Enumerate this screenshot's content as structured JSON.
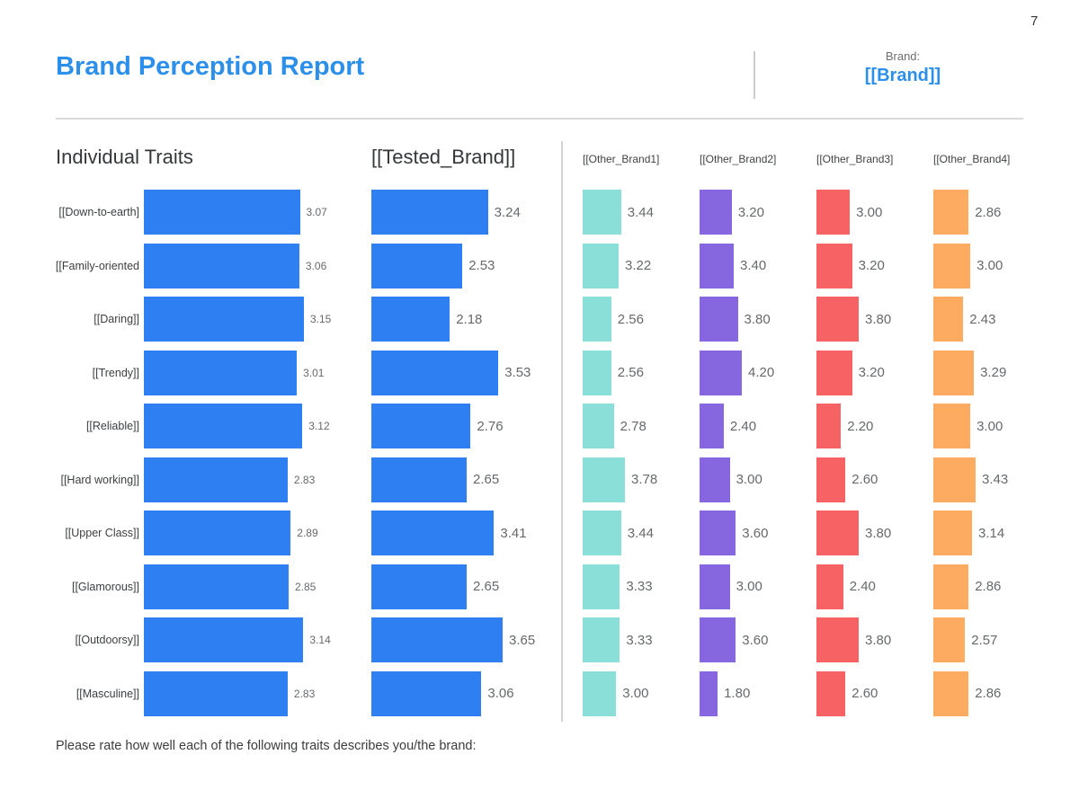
{
  "page": {
    "number": "7"
  },
  "header": {
    "title": "Brand Perception Report",
    "brand_label": "Brand:",
    "brand_value": "[[Brand]]",
    "accent_color": "#2C8FEA"
  },
  "footer": {
    "caption": "Please rate how well each of the following traits describes you/the brand:"
  },
  "chart_data": {
    "type": "bar",
    "orientation": "horizontal",
    "grid": false,
    "legend_position": "none",
    "value_label_decimals": 2,
    "categories": [
      "[[Down-to-earth]",
      "[[Family-oriented",
      "[[Daring]]",
      "[[Trendy]]",
      "[[Reliable]]",
      "[[Hard working]]",
      "[[Upper Class]]",
      "[[Glamorous]]",
      "[[Outdoorsy]]",
      "[[Masculine]]"
    ],
    "series": [
      {
        "name": "Individual Traits",
        "color": "#2E7FF2",
        "axis_max": 3.15,
        "values": [
          3.07,
          3.06,
          3.15,
          3.01,
          3.12,
          2.83,
          2.89,
          2.85,
          3.14,
          2.83
        ]
      },
      {
        "name": "[[Tested_Brand]]",
        "color": "#2E7FF2",
        "axis_max": 3.65,
        "values": [
          3.24,
          2.53,
          2.18,
          3.53,
          2.76,
          2.65,
          3.41,
          2.65,
          3.65,
          3.06
        ]
      },
      {
        "name": "[[Other_Brand1]",
        "color": "#8AE0D9",
        "axis_max": 3.78,
        "values": [
          3.44,
          3.22,
          2.56,
          2.56,
          2.78,
          3.78,
          3.44,
          3.33,
          3.33,
          3.0
        ]
      },
      {
        "name": "[[Other_Brand2]",
        "color": "#8667DF",
        "axis_max": 4.2,
        "values": [
          3.2,
          3.4,
          3.8,
          4.2,
          2.4,
          3.0,
          3.6,
          3.0,
          3.6,
          1.8
        ]
      },
      {
        "name": "[[Other_Brand3]",
        "color": "#F76364",
        "axis_max": 3.8,
        "values": [
          3.0,
          3.2,
          3.8,
          3.2,
          2.2,
          2.6,
          3.8,
          2.4,
          3.8,
          2.6
        ]
      },
      {
        "name": "[[Other_Brand4]",
        "color": "#FDAB61",
        "axis_max": 3.43,
        "values": [
          2.86,
          3.0,
          2.43,
          3.29,
          3.0,
          3.43,
          3.14,
          2.86,
          2.57,
          2.86
        ]
      }
    ]
  }
}
